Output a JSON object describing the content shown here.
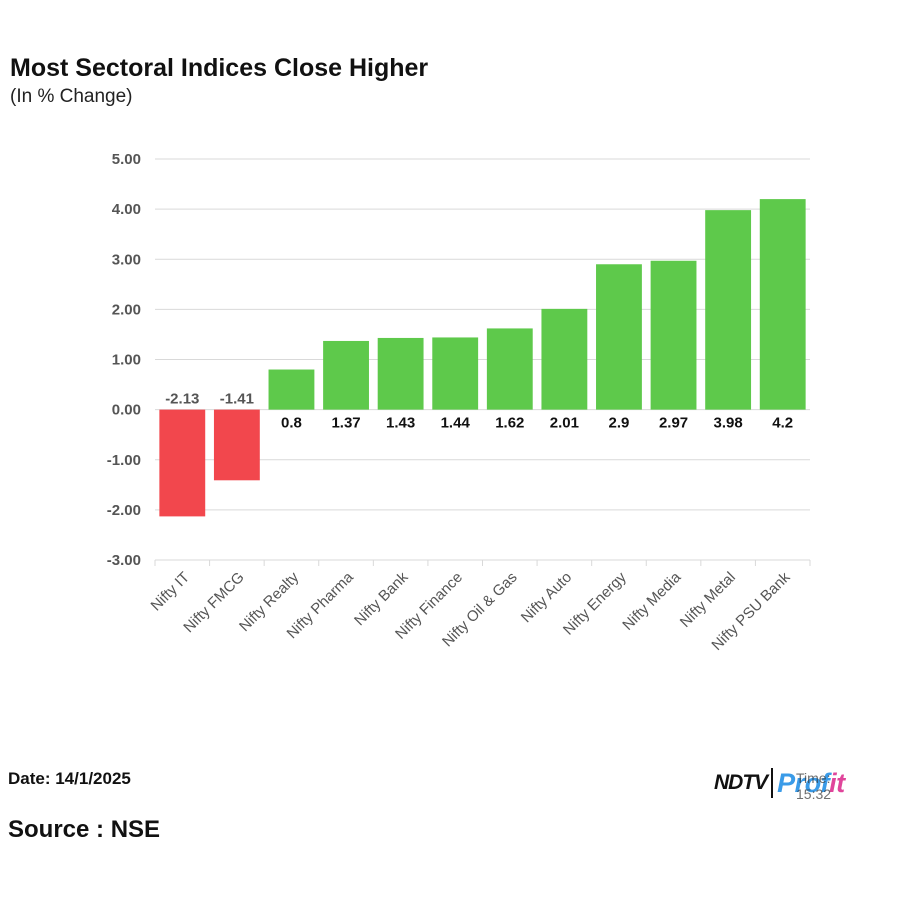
{
  "header": {
    "title": "Most Sectoral Indices Close Higher",
    "subtitle": "(In % Change)"
  },
  "footer": {
    "date": "Date: 14/1/2025",
    "source": "Source : NSE",
    "logo_ndtv": "NDTV",
    "logo_profit_a": "Prof",
    "logo_profit_b": "it",
    "logo_time": "Time: 15:32"
  },
  "colors": {
    "positive": "#5ec94b",
    "negative": "#f2474d",
    "grid": "#d9d9d9",
    "axis_text": "#555555"
  },
  "chart_data": {
    "type": "bar",
    "title": "Most Sectoral Indices Close Higher",
    "subtitle": "(In % Change)",
    "xlabel": "",
    "ylabel": "",
    "ylim": [
      -3,
      5
    ],
    "yticks": [
      "5.00",
      "4.00",
      "3.00",
      "2.00",
      "1.00",
      "0.00",
      "-1.00",
      "-2.00",
      "-3.00"
    ],
    "grid": true,
    "categories": [
      "Nifty IT",
      "Nifty FMCG",
      "Nifty Realty",
      "Nifty Pharma",
      "Nifty Bank",
      "Nifty Finance",
      "Nifty Oil & Gas",
      "Nifty Auto",
      "Nifty Energy",
      "Nifty Media",
      "Nifty Metal",
      "Nifty PSU Bank"
    ],
    "values": [
      -2.13,
      -1.41,
      0.8,
      1.37,
      1.43,
      1.44,
      1.62,
      2.01,
      2.9,
      2.97,
      3.98,
      4.2
    ],
    "labels": [
      "-2.13",
      "-1.41",
      "0.8",
      "1.37",
      "1.43",
      "1.44",
      "1.62",
      "2.01",
      "2.9",
      "2.97",
      "3.98",
      "4.2"
    ]
  }
}
